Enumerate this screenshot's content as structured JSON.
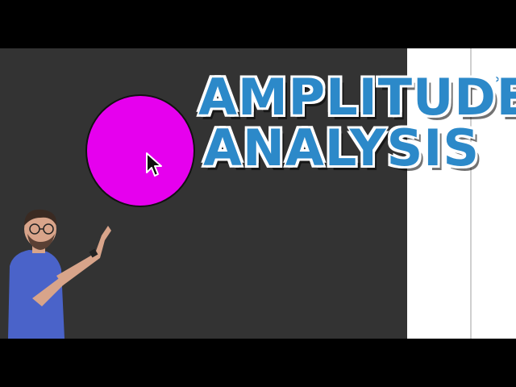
{
  "title": {
    "line1": "AMPLITUDE",
    "line2": "ANALYSIS"
  },
  "colors": {
    "canvas_background": "#333333",
    "circle_fill": "#e600ee",
    "title_fill": "#2c89c9",
    "title_outline": "#ffffff",
    "panel_background": "#ffffff",
    "letterbox": "#000000"
  },
  "icons": {
    "cursor": "mouse-pointer-icon",
    "chevron": "chevron-right-icon"
  }
}
